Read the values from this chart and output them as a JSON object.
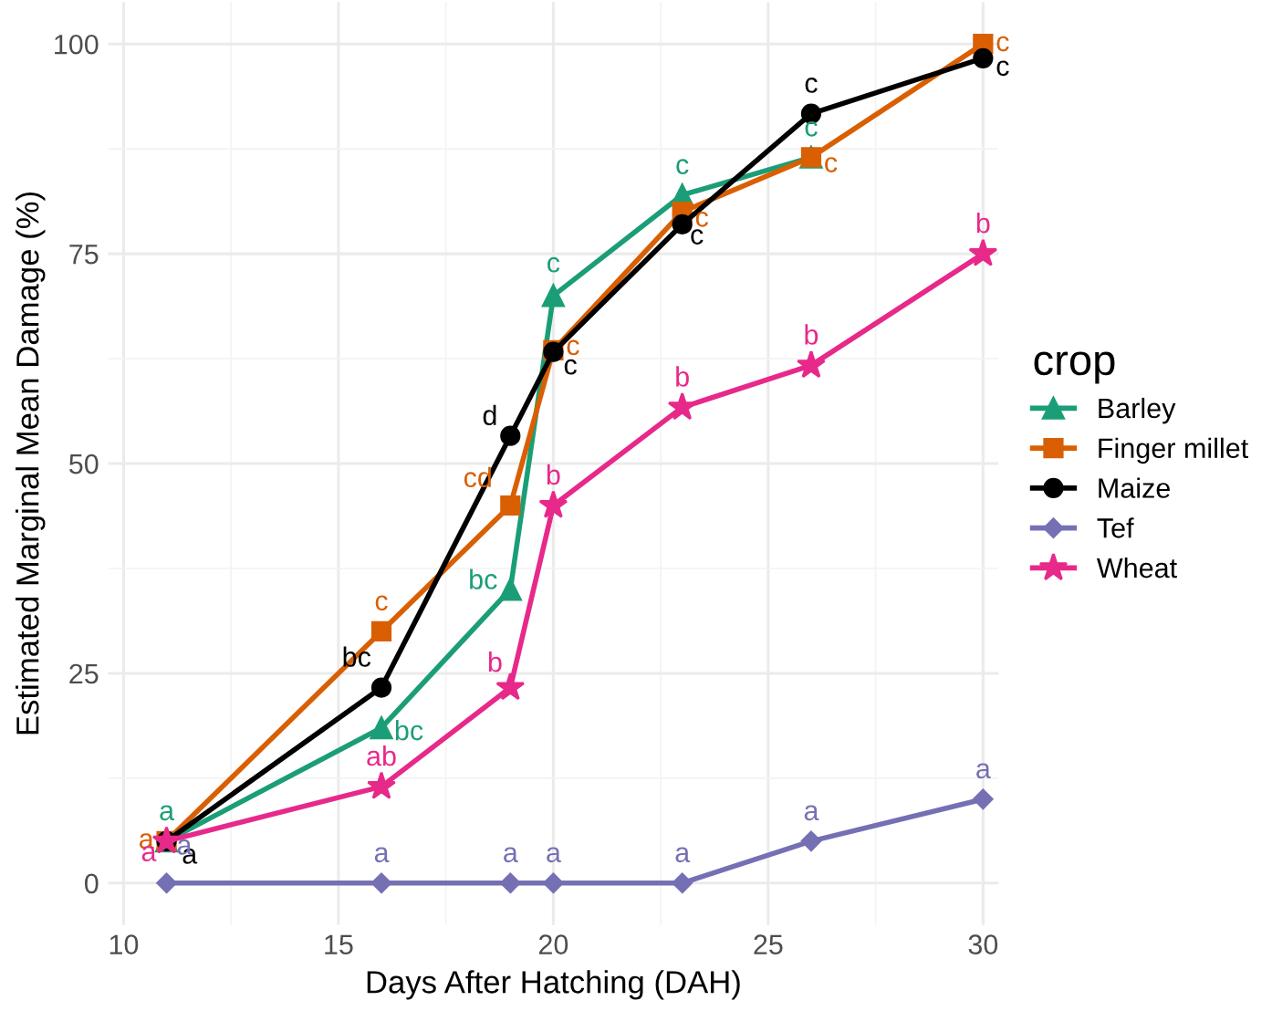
{
  "chart_data": {
    "type": "line",
    "xlabel": "Days After Hatching (DAH)",
    "ylabel": "Estimated Marginal Mean Damage (%)",
    "legend_title": "crop",
    "legend": "right",
    "grid": true,
    "x": [
      11,
      16,
      19,
      20,
      23,
      26,
      30
    ],
    "xlim": [
      9.64,
      30.36
    ],
    "xticks": [
      10,
      15,
      20,
      25,
      30
    ],
    "ylim": [
      -5,
      105
    ],
    "yticks": [
      0,
      25,
      50,
      75,
      100
    ],
    "series": [
      {
        "name": "Barley",
        "color": "#1b9e77",
        "marker": "triangle",
        "values": [
          5,
          18.5,
          35,
          70,
          82,
          86.5,
          null
        ],
        "value_labels": [
          "a",
          "bc",
          "bc",
          "c",
          "c",
          "c",
          null
        ]
      },
      {
        "name": "Finger millet",
        "color": "#d95f02",
        "marker": "square",
        "values": [
          5,
          30,
          45,
          63.5,
          80,
          86.5,
          100
        ],
        "value_labels": [
          "a",
          "c",
          "cd",
          "c",
          "c",
          "c",
          "c"
        ]
      },
      {
        "name": "Maize",
        "color": "#000000",
        "marker": "circle",
        "values": [
          5,
          23.3,
          53.3,
          63.3,
          78.5,
          91.7,
          98.3
        ],
        "value_labels": [
          "a",
          "bc",
          "d",
          "c",
          "c",
          "c",
          "c"
        ]
      },
      {
        "name": "Tef",
        "color": "#7570b3",
        "marker": "diamond",
        "values": [
          0,
          0,
          0,
          0,
          0,
          5,
          10
        ],
        "value_labels": [
          "a",
          "a",
          "a",
          "a",
          "a",
          "a",
          "a"
        ]
      },
      {
        "name": "Wheat",
        "color": "#e7298a",
        "marker": "star",
        "values": [
          5,
          11.5,
          23.3,
          45,
          56.7,
          61.7,
          75
        ],
        "value_labels": [
          "a",
          "ab",
          "b",
          "b",
          "b",
          "b",
          "b"
        ]
      }
    ]
  }
}
